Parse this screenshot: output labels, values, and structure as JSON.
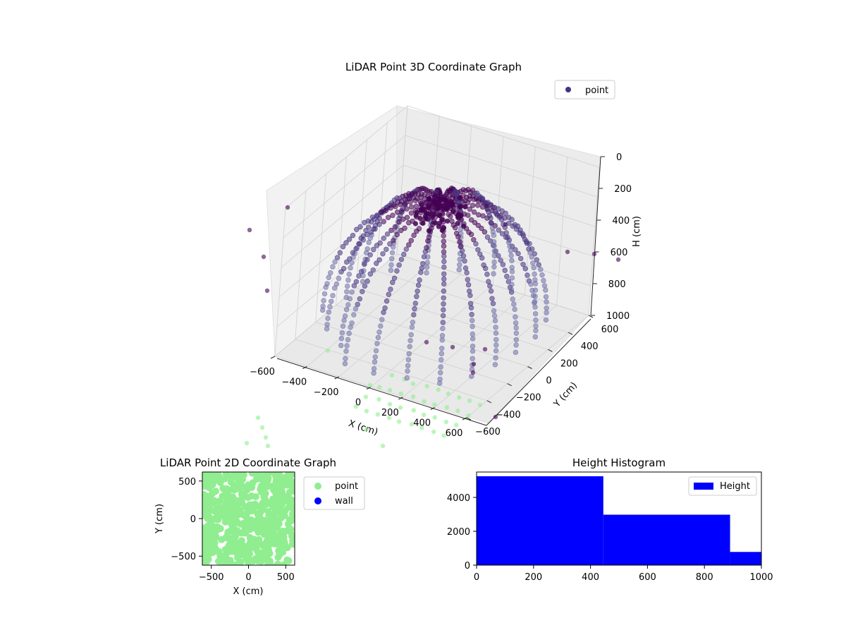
{
  "colors": {
    "point_dark": "#440154",
    "point_mid": "#46337f",
    "point_light": "#6f6fa8",
    "floor_points": "#90ee90",
    "wall": "#0000ff",
    "histogram": "#0000ff",
    "pane": "#f2f2f2",
    "grid": "#d0d0d0"
  },
  "chart_data": [
    {
      "type": "scatter",
      "projection": "3d",
      "title": "LiDAR Point 3D Coordinate Graph",
      "xlabel": "X (cm)",
      "ylabel": "Y (cm)",
      "zlabel": "H (cm)",
      "xlim": [
        -600,
        600
      ],
      "ylim": [
        -600,
        600
      ],
      "zlim": [
        0,
        1000
      ],
      "z_inverted": true,
      "x_ticks": [
        "−600",
        "−400",
        "−200",
        "0",
        "200",
        "400",
        "600"
      ],
      "y_ticks": [
        "−600",
        "−400",
        "−200",
        "0",
        "200",
        "400",
        "600"
      ],
      "z_ticks": [
        "0",
        "200",
        "400",
        "600",
        "800",
        "1000"
      ],
      "legend": {
        "label": "point",
        "placement": "upper-right"
      },
      "grid": true,
      "series": [
        {
          "name": "point",
          "note_colormap": "viridis-dark",
          "arcs": [
            {
              "azimuth": 0,
              "r": 520
            },
            {
              "azimuth": 18,
              "r": 560
            },
            {
              "azimuth": 36,
              "r": 600
            },
            {
              "azimuth": 54,
              "r": 580
            },
            {
              "azimuth": 72,
              "r": 540
            },
            {
              "azimuth": 90,
              "r": 600
            },
            {
              "azimuth": 108,
              "r": 560
            },
            {
              "azimuth": 126,
              "r": 520
            },
            {
              "azimuth": 144,
              "r": 600
            },
            {
              "azimuth": 162,
              "r": 580
            },
            {
              "azimuth": 180,
              "r": 540
            },
            {
              "azimuth": 198,
              "r": 600
            },
            {
              "azimuth": 216,
              "r": 560
            },
            {
              "azimuth": 234,
              "r": 520
            },
            {
              "azimuth": 252,
              "r": 600
            },
            {
              "azimuth": 270,
              "r": 580
            },
            {
              "azimuth": 288,
              "r": 540
            },
            {
              "azimuth": 306,
              "r": 600
            },
            {
              "azimuth": 324,
              "r": 560
            },
            {
              "azimuth": 342,
              "r": 520
            }
          ]
        }
      ]
    },
    {
      "type": "scatter",
      "title": "LiDAR Point 2D Coordinate Graph",
      "xlabel": "X (cm)",
      "ylabel": "Y (cm)",
      "xlim": [
        -620,
        620
      ],
      "ylim": [
        -620,
        620
      ],
      "x_ticks": [
        "−500",
        "0",
        "500"
      ],
      "y_ticks": [
        "−500",
        "0",
        "500"
      ],
      "legend": {
        "labels": [
          "point",
          "wall"
        ],
        "placement": "outside-right"
      },
      "series": [
        {
          "name": "point",
          "color": "#90ee90"
        },
        {
          "name": "wall",
          "color": "#0000ff"
        }
      ]
    },
    {
      "type": "bar",
      "subtype": "histogram",
      "title": "Height Histogram",
      "xlim": [
        0,
        1000
      ],
      "ylim": [
        0,
        5500
      ],
      "x_ticks": [
        "0",
        "200",
        "400",
        "600",
        "800",
        "1000"
      ],
      "y_ticks": [
        "0",
        "2000",
        "4000"
      ],
      "bins": [
        [
          0,
          445
        ],
        [
          445,
          890
        ],
        [
          890,
          1000
        ]
      ],
      "values": [
        5250,
        2980,
        780
      ],
      "legend": {
        "label": "Height",
        "placement": "upper-right"
      },
      "series": [
        {
          "name": "Height",
          "values": [
            5250,
            2980,
            780
          ]
        }
      ]
    }
  ]
}
